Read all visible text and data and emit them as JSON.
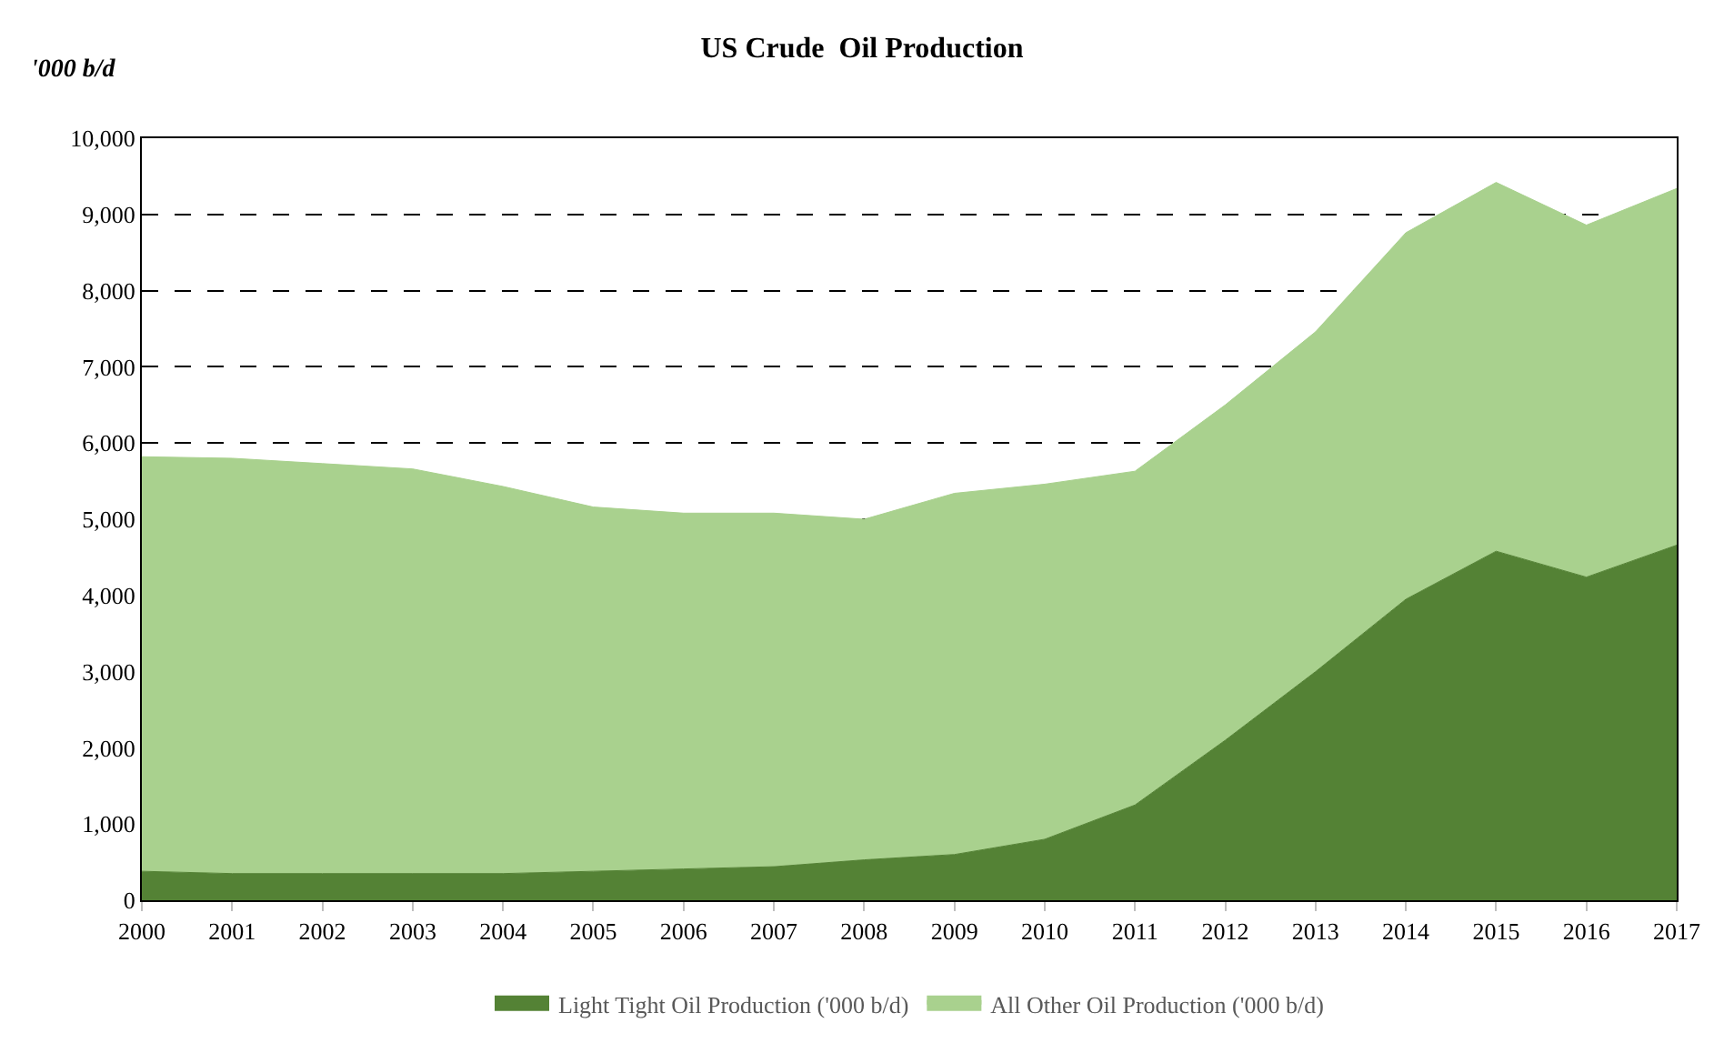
{
  "chart_data": {
    "type": "area",
    "title": "US Crude  Oil Production",
    "ylabel": "'000 b/d",
    "stacked": true,
    "x": [
      2000,
      2001,
      2002,
      2003,
      2004,
      2005,
      2006,
      2007,
      2008,
      2009,
      2010,
      2011,
      2012,
      2013,
      2014,
      2015,
      2016,
      2017
    ],
    "series": [
      {
        "name": "Light Tight Oil Production ('000 b/d)",
        "color": "#548235",
        "values": [
          380,
          350,
          350,
          350,
          350,
          380,
          410,
          440,
          530,
          600,
          800,
          1250,
          2100,
          3000,
          3950,
          4580,
          4240,
          4660
        ]
      },
      {
        "name": "All Other Oil Production ('000 b/d)",
        "color": "#a9d18e",
        "values": [
          5440,
          5450,
          5380,
          5310,
          5080,
          4780,
          4670,
          4640,
          4470,
          4740,
          4660,
          4380,
          4400,
          4460,
          4810,
          4840,
          4620,
          4680
        ]
      }
    ],
    "xlim": [
      2000,
      2017
    ],
    "xticks": [
      2000,
      2001,
      2002,
      2003,
      2004,
      2005,
      2006,
      2007,
      2008,
      2009,
      2010,
      2011,
      2012,
      2013,
      2014,
      2015,
      2016,
      2017
    ],
    "ylim": [
      0,
      10000
    ],
    "yticks": [
      {
        "value": 0,
        "label": "0"
      },
      {
        "value": 1000,
        "label": "1,000"
      },
      {
        "value": 2000,
        "label": "2,000"
      },
      {
        "value": 3000,
        "label": "3,000"
      },
      {
        "value": 4000,
        "label": "4,000"
      },
      {
        "value": 5000,
        "label": "5,000"
      },
      {
        "value": 6000,
        "label": "6,000"
      },
      {
        "value": 7000,
        "label": "7,000"
      },
      {
        "value": 8000,
        "label": "8,000"
      },
      {
        "value": 9000,
        "label": "9,000"
      },
      {
        "value": 10000,
        "label": "10,000"
      }
    ],
    "grid": "y",
    "legend": "bottom",
    "line_style": "dashed"
  }
}
